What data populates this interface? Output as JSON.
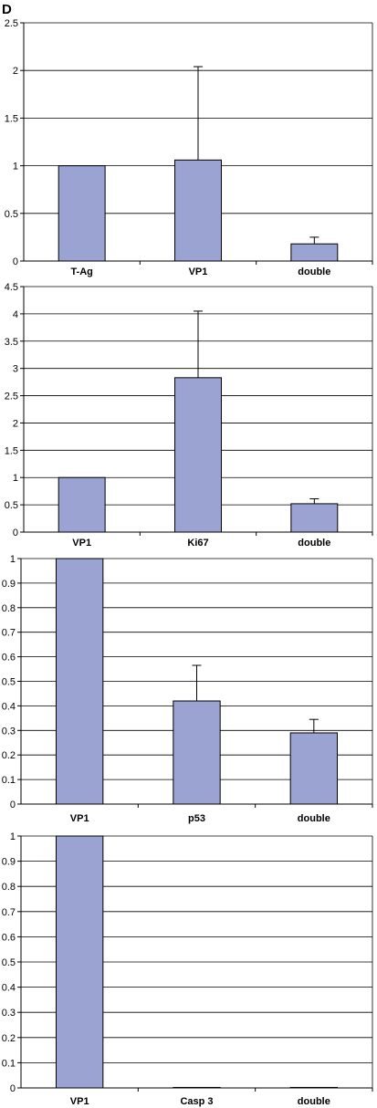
{
  "panel_letter": "D",
  "colors": {
    "bar_fill": "#9ba3d3",
    "bar_stroke": "#000000",
    "grid": "#000000"
  },
  "chart_data": [
    {
      "type": "bar",
      "categories": [
        "T-Ag",
        "VP1",
        "double"
      ],
      "values": [
        1.0,
        1.06,
        0.18
      ],
      "error": [
        0,
        0.98,
        0.07
      ],
      "ylim": [
        0,
        2.5
      ],
      "yticks": [
        "0",
        "0.5",
        "1",
        "1.5",
        "2",
        "2.5"
      ],
      "grid": true
    },
    {
      "type": "bar",
      "categories": [
        "VP1",
        "Ki67",
        "double"
      ],
      "values": [
        1.0,
        2.83,
        0.52
      ],
      "error": [
        0,
        1.22,
        0.09
      ],
      "ylim": [
        0,
        4.5
      ],
      "yticks": [
        "0",
        "0.5",
        "1",
        "1.5",
        "2",
        "2.5",
        "3",
        "3.5",
        "4",
        "4.5"
      ],
      "grid": true
    },
    {
      "type": "bar",
      "categories": [
        "VP1",
        "p53",
        "double"
      ],
      "values": [
        1.0,
        0.42,
        0.29
      ],
      "error": [
        0,
        0.145,
        0.055
      ],
      "ylim": [
        0,
        1
      ],
      "yticks": [
        "0",
        "0.1",
        "0.2",
        "0.3",
        "0.4",
        "0.5",
        "0.6",
        "0.7",
        "0.8",
        "0.9",
        "1"
      ],
      "grid": true
    },
    {
      "type": "bar",
      "categories": [
        "VP1",
        "Casp 3",
        "double"
      ],
      "values": [
        1.0,
        0.002,
        0.002
      ],
      "error": [
        0,
        0,
        0
      ],
      "ylim": [
        0,
        1
      ],
      "yticks": [
        "0",
        "0.1",
        "0.2",
        "0.3",
        "0.4",
        "0.5",
        "0.6",
        "0.7",
        "0.8",
        "0.9",
        "1"
      ],
      "grid": true
    }
  ]
}
